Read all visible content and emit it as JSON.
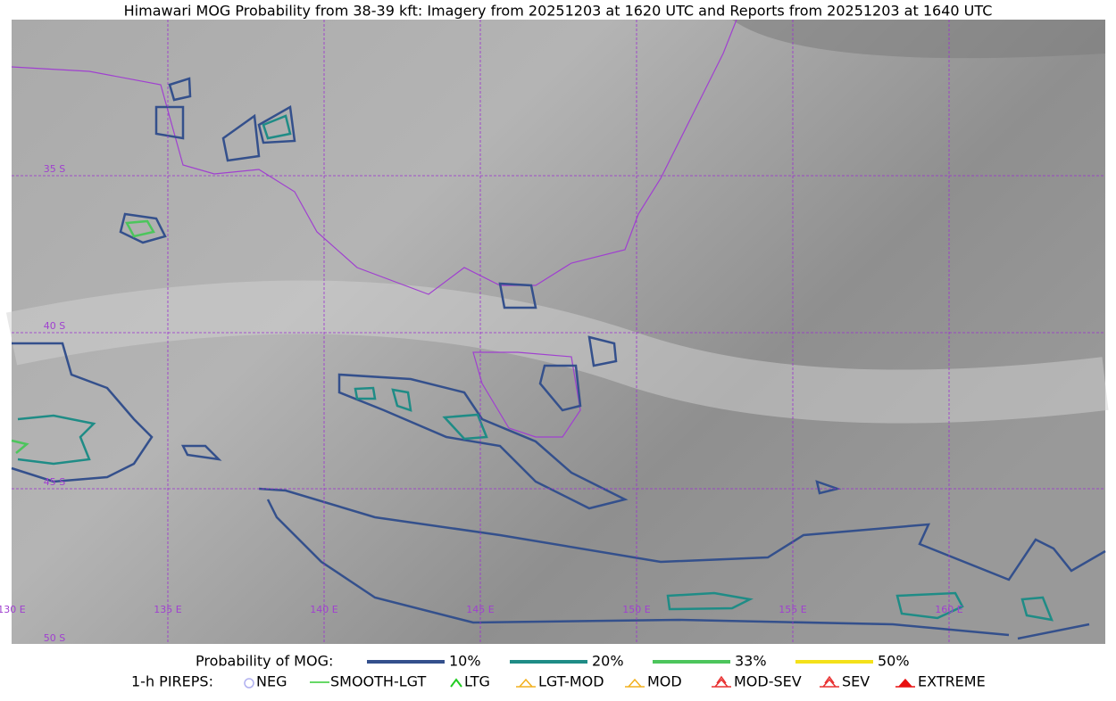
{
  "title": "Himawari MOG Probability from 38-39 kft: Imagery from 20251203 at 1620 UTC and Reports from 20251203 at 1640 UTC",
  "map": {
    "lat_labels": [
      "35 S",
      "40 S",
      "45 S",
      "50 S"
    ],
    "lon_labels": [
      "130 E",
      "135 E",
      "140 E",
      "145 E",
      "150 E",
      "155 E",
      "160 E"
    ]
  },
  "legend": {
    "title": "Probability of MOG:",
    "items": [
      {
        "label": "10%",
        "color": "#34508c"
      },
      {
        "label": "20%",
        "color": "#1f8c86"
      },
      {
        "label": "33%",
        "color": "#4cc55c"
      },
      {
        "label": "50%",
        "color": "#f4e11a"
      }
    ]
  },
  "pireps": {
    "title": "1-h PIREPS:",
    "items": [
      {
        "label": "NEG",
        "color": "#b0b0f0"
      },
      {
        "label": "SMOOTH-LGT",
        "color": "#33cc33"
      },
      {
        "label": "LTG",
        "color": "#22cc22"
      },
      {
        "label": "LGT-MOD",
        "color": "#f2b01e"
      },
      {
        "label": "MOD",
        "color": "#f2b01e"
      },
      {
        "label": "MOD-SEV",
        "color": "#e83030"
      },
      {
        "label": "SEV",
        "color": "#e83030"
      },
      {
        "label": "EXTREME",
        "color": "#e81010"
      }
    ]
  }
}
